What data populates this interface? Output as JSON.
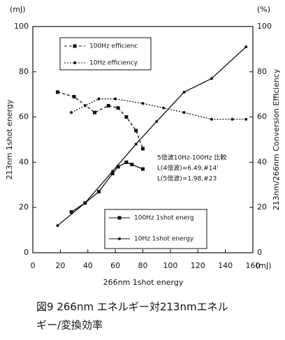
{
  "chart_data": {
    "type": "line",
    "x_unit": "(mJ)",
    "y_unit": "(mJ)",
    "y2_unit": "(%)",
    "xlabel": "266nm 1shot energy",
    "ylabel": "213nm 1shot energy",
    "y2label": "213nm/266nm Conversion Efficiency",
    "xlim": [
      0,
      160
    ],
    "xticks": [
      0,
      20,
      40,
      60,
      80,
      100,
      120,
      140,
      160
    ],
    "ylim": [
      0,
      100
    ],
    "yticks": [
      0,
      20,
      40,
      60,
      80,
      100
    ],
    "y2lim": [
      0,
      100
    ],
    "y2ticks": [
      0,
      20,
      40,
      60,
      80,
      100
    ],
    "series": [
      {
        "name": "100Hz efficienc",
        "axis": "y2",
        "color": "#111",
        "dash": "4 3",
        "marker": "square",
        "x": [
          18,
          30,
          45,
          55,
          62,
          68,
          75,
          80
        ],
        "values": [
          71,
          69,
          62,
          65,
          64,
          60,
          54,
          46
        ]
      },
      {
        "name": "10Hz efficiency",
        "axis": "y2",
        "color": "#111",
        "dash": "2 2",
        "marker": "circle",
        "x": [
          28,
          38,
          48,
          60,
          80,
          95,
          110,
          130,
          145,
          155
        ],
        "values": [
          62,
          65,
          68,
          68,
          66,
          64,
          62,
          59,
          59,
          59
        ]
      },
      {
        "name": "100Hz 1shot energ",
        "axis": "y",
        "color": "#111",
        "dash": "",
        "marker": "square",
        "x": [
          28,
          38,
          48,
          58,
          62,
          68,
          72,
          80
        ],
        "values": [
          18,
          22,
          27,
          35,
          38,
          40,
          39,
          37
        ]
      },
      {
        "name": "10Hz 1shot energy",
        "axis": "y",
        "color": "#111",
        "dash": "",
        "marker": "circle",
        "x": [
          18,
          38,
          58,
          75,
          90,
          110,
          130,
          155
        ],
        "values": [
          12,
          22,
          36,
          48,
          58,
          71,
          77,
          91
        ]
      }
    ],
    "annotation": [
      "5倍波10Hz-100Hz 比較",
      "L(4倍波)=6.49,#14'",
      "L(5倍波)=1.98,#23"
    ],
    "caption": [
      "図9 266nm エネルギー対213nmエネル",
      "ギー/変換効率"
    ]
  }
}
